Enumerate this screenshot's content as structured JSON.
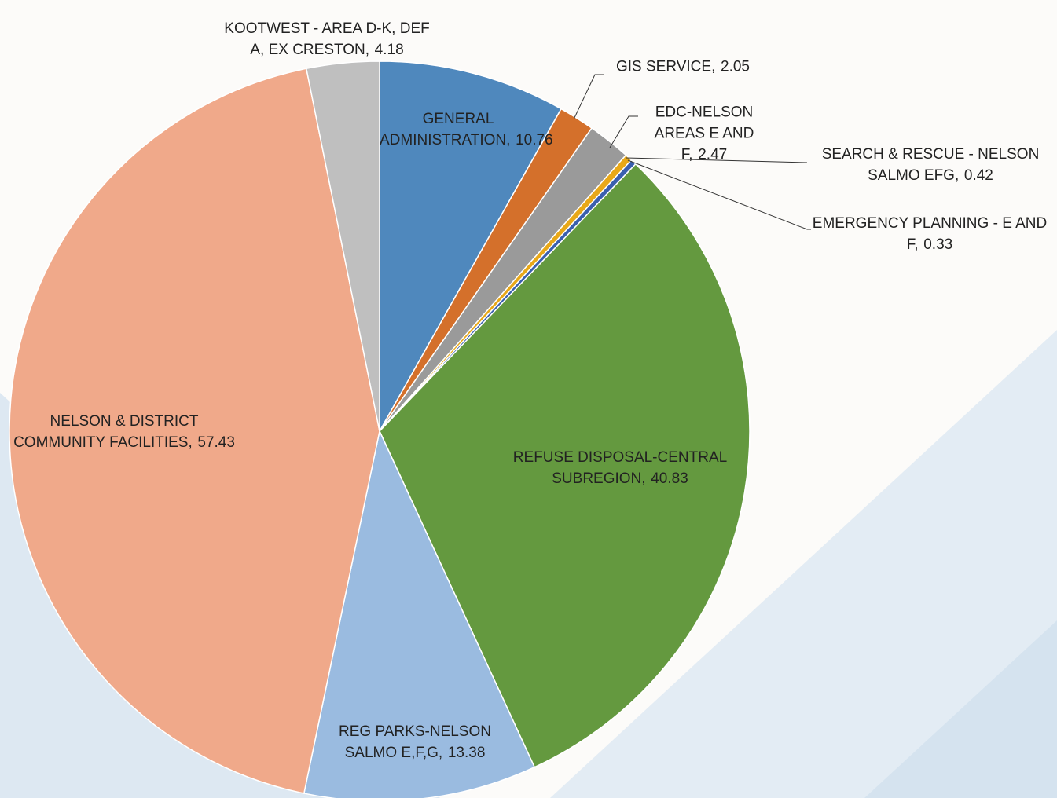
{
  "chart_data": {
    "type": "pie",
    "categories": [
      "GENERAL ADMINISTRATION,",
      "GIS SERVICE,",
      "EDC-NELSON AREAS E AND F,",
      "SEARCH & RESCUE - NELSON SALMO EFG,",
      "EMERGENCY PLANNING - E AND F,",
      "REFUSE DISPOSAL-CENTRAL SUBREGION,",
      "REG PARKS-NELSON SALMO E,F,G,",
      "NELSON & DISTRICT COMMUNITY FACILITIES,",
      "KOOTWEST - AREA D-K, DEF A, EX CRESTON,"
    ],
    "values": [
      10.76,
      2.05,
      2.47,
      0.42,
      0.33,
      40.83,
      13.38,
      57.43,
      4.18
    ],
    "colors": [
      "#4f88bd",
      "#d4702b",
      "#9a9a9a",
      "#e8a818",
      "#3a5fae",
      "#64993f",
      "#9abbe0",
      "#f0a98a",
      "#bfbfbf"
    ]
  }
}
